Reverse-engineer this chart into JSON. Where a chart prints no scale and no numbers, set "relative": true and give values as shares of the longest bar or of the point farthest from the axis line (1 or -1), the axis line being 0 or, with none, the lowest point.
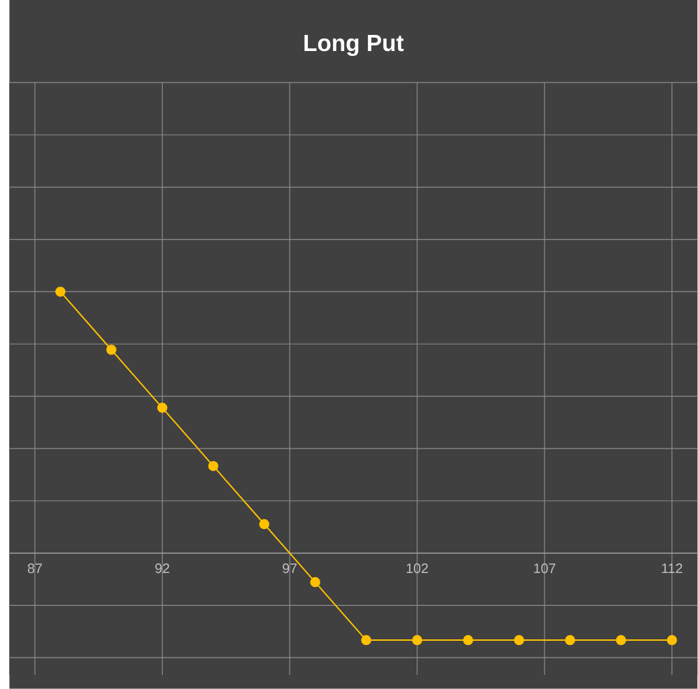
{
  "chart_data": {
    "type": "line",
    "title": "Long Put",
    "x": [
      88,
      90,
      92,
      94,
      96,
      98,
      100,
      102,
      104,
      106,
      108,
      110,
      112
    ],
    "series": [
      {
        "color": "#ffc000",
        "values": [
          1,
          0.778,
          0.556,
          0.333,
          0.111,
          -0.111,
          -0.333,
          -0.333,
          -0.333,
          -0.333,
          -0.333,
          -0.333,
          -0.333
        ]
      }
    ],
    "relative": true,
    "xlim": [
      86,
      113
    ],
    "xticks": [
      87,
      92,
      97,
      102,
      107,
      112
    ],
    "grid": true,
    "marker": "circle",
    "line_style": "solid"
  }
}
